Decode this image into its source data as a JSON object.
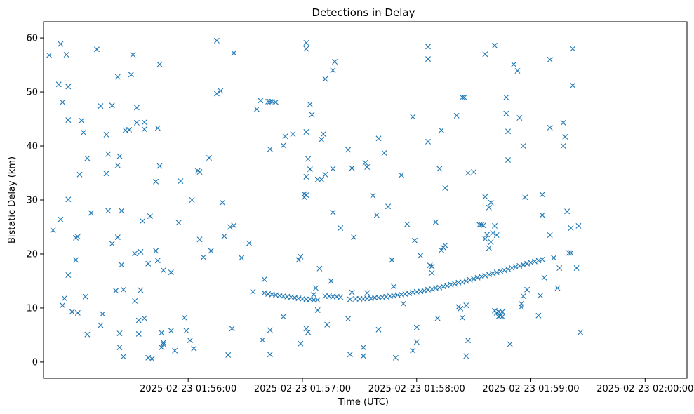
{
  "chart_data": {
    "type": "scatter",
    "title": "Detections in Delay",
    "xlabel": "Time (UTC)",
    "ylabel": "Bistatic Delay (km)",
    "x_unit": "seconds after 2025-02-23 01:55:00",
    "xlim": [
      -16,
      322
    ],
    "ylim": [
      -3,
      63
    ],
    "xticks": [
      {
        "value": 60,
        "label": "2025-02-23 01:56:00"
      },
      {
        "value": 120,
        "label": "2025-02-23 01:57:00"
      },
      {
        "value": 180,
        "label": "2025-02-23 01:58:00"
      },
      {
        "value": 240,
        "label": "2025-02-23 01:59:00"
      },
      {
        "value": 300,
        "label": "2025-02-23 02:00:00"
      }
    ],
    "yticks": [
      0,
      10,
      20,
      30,
      40,
      50,
      60
    ],
    "marker": "x",
    "color": "#1f77b4",
    "grid": false,
    "noise_points": [
      [
        -13,
        56.8
      ],
      [
        -11,
        24.4
      ],
      [
        -8,
        51.4
      ],
      [
        -7,
        58.9
      ],
      [
        -7,
        26.4
      ],
      [
        -6,
        10.5
      ],
      [
        -6,
        48.1
      ],
      [
        -5,
        11.8
      ],
      [
        -4,
        56.9
      ],
      [
        -3,
        51.0
      ],
      [
        -3,
        44.8
      ],
      [
        -3,
        30.1
      ],
      [
        -3,
        16.1
      ],
      [
        -1,
        9.3
      ],
      [
        1,
        18.9
      ],
      [
        1,
        23.0
      ],
      [
        2,
        23.2
      ],
      [
        2,
        9.1
      ],
      [
        3,
        34.7
      ],
      [
        4,
        44.7
      ],
      [
        5,
        42.5
      ],
      [
        6,
        12.1
      ],
      [
        7,
        37.7
      ],
      [
        7,
        5.1
      ],
      [
        9,
        27.6
      ],
      [
        12,
        57.9
      ],
      [
        14,
        6.8
      ],
      [
        14,
        47.4
      ],
      [
        15,
        8.9
      ],
      [
        17,
        42.1
      ],
      [
        17,
        34.9
      ],
      [
        18,
        38.5
      ],
      [
        18,
        28.0
      ],
      [
        20,
        47.5
      ],
      [
        20,
        21.9
      ],
      [
        22,
        13.2
      ],
      [
        23,
        36.4
      ],
      [
        23,
        23.1
      ],
      [
        23,
        52.8
      ],
      [
        24,
        38.1
      ],
      [
        24,
        5.3
      ],
      [
        24,
        2.7
      ],
      [
        25,
        18.0
      ],
      [
        25,
        28.0
      ],
      [
        26,
        13.4
      ],
      [
        26,
        1.0
      ],
      [
        27,
        42.9
      ],
      [
        29,
        43.0
      ],
      [
        30,
        53.2
      ],
      [
        31,
        56.9
      ],
      [
        32,
        11.3
      ],
      [
        32,
        20.1
      ],
      [
        33,
        47.1
      ],
      [
        33,
        44.3
      ],
      [
        34,
        7.7
      ],
      [
        34,
        5.2
      ],
      [
        35,
        20.4
      ],
      [
        35,
        13.3
      ],
      [
        36,
        26.1
      ],
      [
        37,
        44.4
      ],
      [
        37,
        43.1
      ],
      [
        37,
        8.1
      ],
      [
        39,
        0.8
      ],
      [
        39,
        18.2
      ],
      [
        40,
        27.0
      ],
      [
        41,
        0.6
      ],
      [
        43,
        20.6
      ],
      [
        43,
        33.4
      ],
      [
        44,
        43.3
      ],
      [
        44,
        18.8
      ],
      [
        45,
        36.3
      ],
      [
        45,
        55.1
      ],
      [
        46,
        5.4
      ],
      [
        46,
        2.7
      ],
      [
        47,
        3.3
      ],
      [
        47,
        3.6
      ],
      [
        47,
        17.0
      ],
      [
        51,
        16.6
      ],
      [
        51,
        5.8
      ],
      [
        53,
        2.1
      ],
      [
        55,
        25.8
      ],
      [
        56,
        33.5
      ],
      [
        58,
        8.2
      ],
      [
        59,
        5.8
      ],
      [
        61,
        4.0
      ],
      [
        62,
        30.0
      ],
      [
        63,
        2.5
      ],
      [
        65,
        35.4
      ],
      [
        66,
        35.2
      ],
      [
        66,
        22.7
      ],
      [
        68,
        19.4
      ],
      [
        71,
        37.8
      ],
      [
        72,
        20.6
      ],
      [
        75,
        59.5
      ],
      [
        75,
        49.7
      ],
      [
        77,
        50.2
      ],
      [
        78,
        29.5
      ],
      [
        79,
        23.3
      ],
      [
        81,
        1.3
      ],
      [
        82,
        25.0
      ],
      [
        83,
        6.2
      ],
      [
        84,
        57.2
      ],
      [
        84,
        25.3
      ],
      [
        88,
        19.3
      ],
      [
        92,
        22.0
      ],
      [
        94,
        13.0
      ],
      [
        96,
        46.8
      ],
      [
        98,
        48.4
      ],
      [
        99,
        4.1
      ],
      [
        100,
        15.3
      ],
      [
        102,
        48.2
      ],
      [
        103,
        48.2
      ],
      [
        103,
        39.4
      ],
      [
        103,
        5.9
      ],
      [
        103,
        1.4
      ],
      [
        104,
        48.2
      ],
      [
        106,
        48.1
      ],
      [
        110,
        8.4
      ],
      [
        110,
        40.1
      ],
      [
        111,
        41.8
      ],
      [
        115,
        42.2
      ],
      [
        118,
        18.9
      ],
      [
        119,
        19.5
      ],
      [
        119,
        3.4
      ],
      [
        121,
        30.5
      ],
      [
        121,
        31.1
      ],
      [
        122,
        30.9
      ],
      [
        122,
        34.3
      ],
      [
        122,
        42.6
      ],
      [
        122,
        58.0
      ],
      [
        122,
        59.1
      ],
      [
        122,
        6.2
      ],
      [
        123,
        5.5
      ],
      [
        123,
        37.6
      ],
      [
        124,
        47.7
      ],
      [
        124,
        35.7
      ],
      [
        125,
        45.8
      ],
      [
        126,
        12.5
      ],
      [
        127,
        13.7
      ],
      [
        128,
        33.8
      ],
      [
        128,
        9.6
      ],
      [
        129,
        17.3
      ],
      [
        130,
        41.2
      ],
      [
        130,
        33.8
      ],
      [
        131,
        42.2
      ],
      [
        132,
        52.4
      ],
      [
        132,
        34.7
      ],
      [
        133,
        6.9
      ],
      [
        135,
        15.0
      ],
      [
        136,
        54.0
      ],
      [
        136,
        27.7
      ],
      [
        136,
        35.8
      ],
      [
        137,
        55.6
      ],
      [
        140,
        24.8
      ],
      [
        144,
        39.3
      ],
      [
        144,
        8.0
      ],
      [
        145,
        1.4
      ],
      [
        146,
        35.9
      ],
      [
        146,
        12.9
      ],
      [
        147,
        23.1
      ],
      [
        152,
        1.1
      ],
      [
        152,
        2.7
      ],
      [
        153,
        36.9
      ],
      [
        154,
        36.1
      ],
      [
        154,
        12.8
      ],
      [
        157,
        30.8
      ],
      [
        159,
        27.2
      ],
      [
        160,
        41.4
      ],
      [
        160,
        6.0
      ],
      [
        163,
        38.7
      ],
      [
        165,
        28.8
      ],
      [
        167,
        18.9
      ],
      [
        168,
        14.0
      ],
      [
        169,
        0.8
      ],
      [
        172,
        34.6
      ],
      [
        173,
        10.8
      ],
      [
        175,
        25.5
      ],
      [
        178,
        45.4
      ],
      [
        178,
        2.1
      ],
      [
        179,
        22.5
      ],
      [
        180,
        3.7
      ],
      [
        180,
        6.4
      ],
      [
        182,
        19.7
      ],
      [
        186,
        40.8
      ],
      [
        186,
        58.4
      ],
      [
        186,
        56.1
      ],
      [
        187,
        17.9
      ],
      [
        188,
        17.7
      ],
      [
        188,
        16.5
      ],
      [
        190,
        25.9
      ],
      [
        191,
        8.1
      ],
      [
        192,
        35.8
      ],
      [
        193,
        20.7
      ],
      [
        193,
        42.9
      ],
      [
        194,
        21.2
      ],
      [
        195,
        21.6
      ],
      [
        195,
        32.2
      ],
      [
        201,
        45.6
      ],
      [
        202,
        10.2
      ],
      [
        203,
        9.9
      ],
      [
        204,
        8.2
      ],
      [
        204,
        49.0
      ],
      [
        205,
        49.0
      ],
      [
        206,
        10.5
      ],
      [
        206,
        1.1
      ],
      [
        207,
        35.0
      ],
      [
        207,
        4.0
      ],
      [
        210,
        35.2
      ],
      [
        213,
        25.4
      ],
      [
        214,
        25.4
      ],
      [
        215,
        25.3
      ],
      [
        216,
        57.0
      ],
      [
        216,
        30.6
      ],
      [
        216,
        22.8
      ],
      [
        217,
        23.6
      ],
      [
        218,
        21.1
      ],
      [
        218,
        28.6
      ],
      [
        219,
        22.2
      ],
      [
        219,
        29.5
      ],
      [
        220,
        23.9
      ],
      [
        221,
        58.6
      ],
      [
        221,
        25.2
      ],
      [
        221,
        9.5
      ],
      [
        222,
        23.5
      ],
      [
        222,
        9.1
      ],
      [
        223,
        9.3
      ],
      [
        223,
        8.4
      ],
      [
        224,
        8.6
      ],
      [
        225,
        9.3
      ],
      [
        225,
        8.4
      ],
      [
        227,
        49.0
      ],
      [
        227,
        46.0
      ],
      [
        228,
        42.7
      ],
      [
        228,
        37.4
      ],
      [
        229,
        3.3
      ],
      [
        231,
        55.1
      ],
      [
        233,
        53.9
      ],
      [
        234,
        45.2
      ],
      [
        235,
        10.2
      ],
      [
        235,
        10.8
      ],
      [
        236,
        12.2
      ],
      [
        236,
        40.0
      ],
      [
        237,
        30.5
      ],
      [
        238,
        13.4
      ],
      [
        244,
        8.6
      ],
      [
        245,
        12.3
      ],
      [
        246,
        31.0
      ],
      [
        246,
        27.2
      ],
      [
        247,
        15.6
      ],
      [
        250,
        43.4
      ],
      [
        250,
        56.0
      ],
      [
        250,
        23.5
      ],
      [
        252,
        19.3
      ],
      [
        254,
        13.7
      ],
      [
        255,
        17.4
      ],
      [
        257,
        44.3
      ],
      [
        257,
        40.0
      ],
      [
        258,
        41.7
      ],
      [
        259,
        27.9
      ],
      [
        260,
        20.2
      ],
      [
        261,
        20.2
      ],
      [
        261,
        24.8
      ],
      [
        262,
        58.0
      ],
      [
        262,
        51.2
      ],
      [
        264,
        17.4
      ],
      [
        265,
        25.2
      ],
      [
        266,
        5.5
      ]
    ],
    "track_points": [
      [
        100,
        12.8
      ],
      [
        102,
        12.6
      ],
      [
        104,
        12.5
      ],
      [
        106,
        12.4
      ],
      [
        108,
        12.3
      ],
      [
        110,
        12.2
      ],
      [
        112,
        12.1
      ],
      [
        114,
        12.0
      ],
      [
        116,
        11.9
      ],
      [
        118,
        11.8
      ],
      [
        120,
        11.7
      ],
      [
        122,
        11.6
      ],
      [
        124,
        11.6
      ],
      [
        126,
        11.5
      ],
      [
        128,
        11.5
      ],
      [
        132,
        12.2
      ],
      [
        134,
        12.2
      ],
      [
        136,
        12.1
      ],
      [
        138,
        12.1
      ],
      [
        140,
        12.0
      ],
      [
        145,
        11.6
      ],
      [
        148,
        11.7
      ],
      [
        150,
        11.7
      ],
      [
        152,
        11.7
      ],
      [
        154,
        11.8
      ],
      [
        156,
        11.8
      ],
      [
        158,
        11.9
      ],
      [
        160,
        11.9
      ],
      [
        162,
        12.0
      ],
      [
        164,
        12.1
      ],
      [
        166,
        12.2
      ],
      [
        168,
        12.3
      ],
      [
        170,
        12.4
      ],
      [
        172,
        12.5
      ],
      [
        174,
        12.6
      ],
      [
        176,
        12.7
      ],
      [
        178,
        12.9
      ],
      [
        180,
        13.0
      ],
      [
        182,
        13.1
      ],
      [
        184,
        13.2
      ],
      [
        186,
        13.4
      ],
      [
        188,
        13.5
      ],
      [
        190,
        13.7
      ],
      [
        192,
        13.8
      ],
      [
        194,
        14.0
      ],
      [
        196,
        14.1
      ],
      [
        198,
        14.3
      ],
      [
        200,
        14.5
      ],
      [
        202,
        14.7
      ],
      [
        204,
        14.8
      ],
      [
        206,
        15.0
      ],
      [
        208,
        15.2
      ],
      [
        210,
        15.4
      ],
      [
        212,
        15.6
      ],
      [
        214,
        15.8
      ],
      [
        216,
        16.0
      ],
      [
        218,
        16.2
      ],
      [
        220,
        16.4
      ],
      [
        222,
        16.6
      ],
      [
        224,
        16.8
      ],
      [
        226,
        17.0
      ],
      [
        228,
        17.2
      ],
      [
        230,
        17.4
      ],
      [
        232,
        17.6
      ],
      [
        234,
        17.8
      ],
      [
        236,
        18.0
      ],
      [
        238,
        18.2
      ],
      [
        240,
        18.4
      ],
      [
        242,
        18.6
      ],
      [
        244,
        18.8
      ],
      [
        246,
        19.0
      ]
    ]
  }
}
